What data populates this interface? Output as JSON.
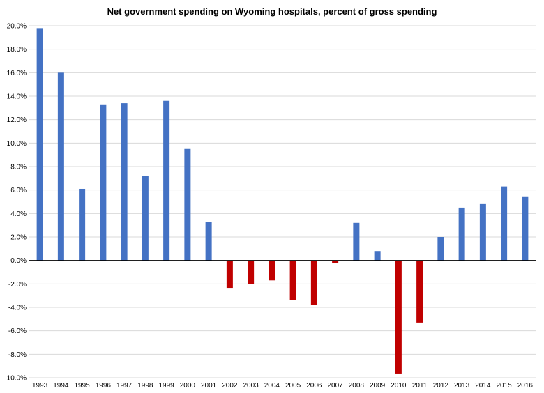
{
  "chart_data": {
    "type": "bar",
    "title": "Net government spending on Wyoming hospitals, percent of gross spending",
    "xlabel": "",
    "ylabel": "",
    "categories": [
      "1993",
      "1994",
      "1995",
      "1996",
      "1997",
      "1998",
      "1999",
      "2000",
      "2001",
      "2002",
      "2003",
      "2004",
      "2005",
      "2006",
      "2007",
      "2008",
      "2009",
      "2010",
      "2011",
      "2012",
      "2013",
      "2014",
      "2015",
      "2016"
    ],
    "values": [
      19.8,
      16.0,
      6.1,
      13.3,
      13.4,
      7.2,
      13.6,
      9.5,
      3.3,
      -2.4,
      -2.0,
      -1.7,
      -3.4,
      -3.8,
      -0.2,
      3.2,
      0.8,
      -9.7,
      -5.3,
      2.0,
      4.5,
      4.8,
      6.3,
      5.4
    ],
    "ylim": [
      -10,
      20
    ],
    "yticks": [
      "20.0%",
      "18.0%",
      "16.0%",
      "14.0%",
      "12.0%",
      "10.0%",
      "8.0%",
      "6.0%",
      "4.0%",
      "2.0%",
      "0.0%",
      "-2.0%",
      "-4.0%",
      "-6.0%",
      "-8.0%",
      "-10.0%"
    ],
    "ytick_values": [
      20,
      18,
      16,
      14,
      12,
      10,
      8,
      6,
      4,
      2,
      0,
      -2,
      -4,
      -6,
      -8,
      -10
    ],
    "grid": true,
    "legend": "none",
    "colors": {
      "positive": "#4472c4",
      "negative": "#c00000",
      "grid": "#d9d9d9",
      "axis": "#000000"
    }
  }
}
